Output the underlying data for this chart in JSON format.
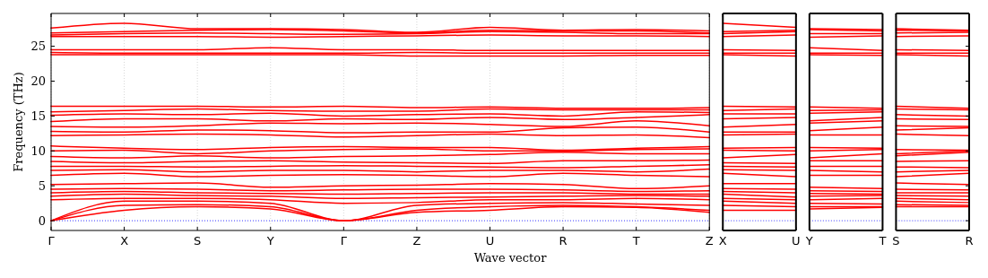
{
  "chart_data": [
    {
      "type": "line",
      "ylabel": "Frequency (THz)",
      "xlabel": "Wave vector",
      "grid": "x",
      "ylim": [
        -1.4,
        29.7
      ],
      "yticks": [
        0,
        5,
        10,
        15,
        20,
        25
      ],
      "categories": [
        "Γ",
        "X",
        "S",
        "Y",
        "Γ",
        "Z",
        "U",
        "R",
        "T",
        "Z"
      ],
      "ref_lines": [
        {
          "axis": "y",
          "value": 0,
          "color": "#0000ff",
          "line_style": "dotted"
        }
      ],
      "series": [
        {
          "color": "#ff0000",
          "values": [
            0,
            1.5,
            2.0,
            1.7,
            0,
            1.2,
            1.5,
            2.0,
            1.9,
            1.2
          ]
        },
        {
          "color": "#ff0000",
          "values": [
            0,
            2.2,
            2.3,
            2.0,
            0,
            1.5,
            2.0,
            2.2,
            2.0,
            1.5
          ]
        },
        {
          "color": "#ff0000",
          "values": [
            0,
            2.8,
            2.8,
            2.5,
            0,
            2.2,
            2.5,
            2.6,
            2.4,
            2.2
          ]
        },
        {
          "color": "#ff0000",
          "values": [
            3.0,
            3.2,
            3.2,
            3.0,
            2.5,
            2.6,
            3.0,
            3.0,
            3.2,
            3.0
          ]
        },
        {
          "color": "#ff0000",
          "values": [
            3.5,
            3.8,
            3.6,
            3.5,
            3.2,
            3.3,
            3.4,
            3.5,
            3.6,
            3.5
          ]
        },
        {
          "color": "#ff0000",
          "values": [
            4.0,
            4.2,
            4.0,
            3.9,
            3.8,
            3.9,
            4.0,
            4.0,
            3.8,
            3.8
          ]
        },
        {
          "color": "#ff0000",
          "values": [
            4.5,
            4.6,
            4.5,
            4.3,
            4.4,
            4.5,
            4.5,
            4.4,
            4.2,
            4.3
          ]
        },
        {
          "color": "#ff0000",
          "values": [
            5.2,
            5.3,
            5.4,
            4.8,
            5.0,
            5.1,
            5.3,
            5.2,
            4.6,
            5.0
          ]
        },
        {
          "color": "#ff0000",
          "values": [
            6.5,
            6.8,
            6.3,
            6.5,
            6.6,
            6.5,
            6.3,
            6.8,
            6.5,
            6.3
          ]
        },
        {
          "color": "#ff0000",
          "values": [
            7.2,
            7.3,
            7.0,
            7.2,
            7.2,
            7.0,
            7.2,
            7.2,
            7.0,
            7.4
          ]
        },
        {
          "color": "#ff0000",
          "values": [
            7.8,
            7.8,
            7.7,
            7.8,
            7.9,
            7.8,
            7.7,
            7.6,
            7.8,
            8.0
          ]
        },
        {
          "color": "#ff0000",
          "values": [
            8.5,
            8.3,
            8.5,
            8.6,
            8.4,
            8.3,
            8.2,
            8.6,
            8.6,
            8.7
          ]
        },
        {
          "color": "#ff0000",
          "values": [
            9.2,
            9.0,
            9.3,
            9.0,
            9.2,
            9.3,
            9.5,
            9.8,
            9.6,
            9.6
          ]
        },
        {
          "color": "#ff0000",
          "values": [
            10.0,
            10.1,
            9.6,
            10.0,
            10.2,
            10.3,
            10.0,
            10.0,
            10.2,
            10.3
          ]
        },
        {
          "color": "#ff0000",
          "values": [
            10.7,
            10.4,
            10.2,
            10.5,
            10.6,
            10.5,
            10.5,
            10.1,
            10.4,
            10.6
          ]
        },
        {
          "color": "#ff0000",
          "values": [
            12.2,
            12.3,
            12.4,
            12.3,
            12.0,
            12.2,
            12.4,
            12.2,
            12.3,
            11.9
          ]
        },
        {
          "color": "#ff0000",
          "values": [
            12.8,
            12.7,
            13.0,
            12.9,
            12.6,
            12.7,
            12.7,
            13.3,
            13.4,
            12.7
          ]
        },
        {
          "color": "#ff0000",
          "values": [
            13.5,
            13.4,
            13.6,
            14.0,
            13.9,
            14.0,
            13.8,
            13.5,
            14.3,
            13.6
          ]
        },
        {
          "color": "#ff0000",
          "values": [
            14.2,
            14.6,
            14.6,
            14.3,
            14.6,
            14.5,
            14.8,
            14.5,
            14.8,
            15.2
          ]
        },
        {
          "color": "#ff0000",
          "values": [
            15.1,
            15.3,
            15.2,
            15.4,
            15.0,
            15.2,
            15.3,
            15.0,
            15.6,
            15.5
          ]
        },
        {
          "color": "#ff0000",
          "values": [
            15.6,
            15.8,
            16.0,
            15.8,
            15.7,
            15.7,
            16.0,
            15.9,
            15.9,
            15.9
          ]
        },
        {
          "color": "#ff0000",
          "values": [
            16.4,
            16.4,
            16.4,
            16.3,
            16.4,
            16.2,
            16.3,
            16.1,
            16.1,
            16.2
          ]
        },
        {
          "color": "#ff0000",
          "values": [
            23.8,
            23.8,
            23.8,
            23.8,
            23.8,
            23.6,
            23.6,
            23.6,
            23.7,
            23.7
          ]
        },
        {
          "color": "#ff0000",
          "values": [
            24.1,
            24.0,
            24.0,
            24.0,
            24.0,
            24.1,
            24.0,
            24.0,
            24.0,
            24.0
          ]
        },
        {
          "color": "#ff0000",
          "values": [
            24.5,
            24.5,
            24.5,
            24.8,
            24.5,
            24.5,
            24.4,
            24.4,
            24.4,
            24.4
          ]
        },
        {
          "color": "#ff0000",
          "values": [
            26.4,
            26.4,
            26.4,
            26.3,
            26.4,
            26.5,
            26.6,
            26.5,
            26.5,
            26.4
          ]
        },
        {
          "color": "#ff0000",
          "values": [
            26.6,
            26.8,
            26.9,
            26.8,
            26.7,
            26.8,
            27.1,
            27.0,
            26.8,
            26.8
          ]
        },
        {
          "color": "#ff0000",
          "values": [
            26.9,
            27.1,
            27.3,
            27.4,
            27.2,
            26.9,
            27.3,
            27.2,
            27.2,
            26.9
          ]
        },
        {
          "color": "#ff0000",
          "values": [
            27.6,
            28.3,
            27.5,
            27.5,
            27.4,
            27.0,
            27.7,
            27.3,
            27.4,
            27.2
          ]
        }
      ]
    },
    {
      "type": "line",
      "tick_labels": "x",
      "ylim": [
        -1.4,
        29.7
      ],
      "categories": [
        "X",
        "U"
      ],
      "ref_lines": [
        {
          "axis": "y",
          "value": 0,
          "color": "#0000ff",
          "line_style": "dotted"
        }
      ],
      "series": [
        {
          "color": "#ff0000",
          "values": [
            1.5,
            1.5
          ]
        },
        {
          "color": "#ff0000",
          "values": [
            2.2,
            2.0
          ]
        },
        {
          "color": "#ff0000",
          "values": [
            2.8,
            2.5
          ]
        },
        {
          "color": "#ff0000",
          "values": [
            3.2,
            3.0
          ]
        },
        {
          "color": "#ff0000",
          "values": [
            3.8,
            3.4
          ]
        },
        {
          "color": "#ff0000",
          "values": [
            4.2,
            4.0
          ]
        },
        {
          "color": "#ff0000",
          "values": [
            4.6,
            4.5
          ]
        },
        {
          "color": "#ff0000",
          "values": [
            5.3,
            5.3
          ]
        },
        {
          "color": "#ff0000",
          "values": [
            6.8,
            6.3
          ]
        },
        {
          "color": "#ff0000",
          "values": [
            7.3,
            7.2
          ]
        },
        {
          "color": "#ff0000",
          "values": [
            7.8,
            7.7
          ]
        },
        {
          "color": "#ff0000",
          "values": [
            8.3,
            8.2
          ]
        },
        {
          "color": "#ff0000",
          "values": [
            9.0,
            9.5
          ]
        },
        {
          "color": "#ff0000",
          "values": [
            10.1,
            10.0
          ]
        },
        {
          "color": "#ff0000",
          "values": [
            10.4,
            10.5
          ]
        },
        {
          "color": "#ff0000",
          "values": [
            12.3,
            12.4
          ]
        },
        {
          "color": "#ff0000",
          "values": [
            12.7,
            12.7
          ]
        },
        {
          "color": "#ff0000",
          "values": [
            13.4,
            13.8
          ]
        },
        {
          "color": "#ff0000",
          "values": [
            14.6,
            14.8
          ]
        },
        {
          "color": "#ff0000",
          "values": [
            15.3,
            15.3
          ]
        },
        {
          "color": "#ff0000",
          "values": [
            15.8,
            16.0
          ]
        },
        {
          "color": "#ff0000",
          "values": [
            16.4,
            16.3
          ]
        },
        {
          "color": "#ff0000",
          "values": [
            23.8,
            23.6
          ]
        },
        {
          "color": "#ff0000",
          "values": [
            24.0,
            24.0
          ]
        },
        {
          "color": "#ff0000",
          "values": [
            24.5,
            24.4
          ]
        },
        {
          "color": "#ff0000",
          "values": [
            26.4,
            26.6
          ]
        },
        {
          "color": "#ff0000",
          "values": [
            26.8,
            27.1
          ]
        },
        {
          "color": "#ff0000",
          "values": [
            27.1,
            27.3
          ]
        },
        {
          "color": "#ff0000",
          "values": [
            28.3,
            27.7
          ]
        }
      ]
    },
    {
      "type": "line",
      "tick_labels": "x",
      "ylim": [
        -1.4,
        29.7
      ],
      "categories": [
        "Y",
        "T"
      ],
      "ref_lines": [
        {
          "axis": "y",
          "value": 0,
          "color": "#0000ff",
          "line_style": "dotted"
        }
      ],
      "series": [
        {
          "color": "#ff0000",
          "values": [
            1.7,
            1.9
          ]
        },
        {
          "color": "#ff0000",
          "values": [
            2.0,
            2.0
          ]
        },
        {
          "color": "#ff0000",
          "values": [
            2.5,
            2.4
          ]
        },
        {
          "color": "#ff0000",
          "values": [
            3.0,
            3.2
          ]
        },
        {
          "color": "#ff0000",
          "values": [
            3.5,
            3.6
          ]
        },
        {
          "color": "#ff0000",
          "values": [
            3.9,
            3.8
          ]
        },
        {
          "color": "#ff0000",
          "values": [
            4.3,
            4.2
          ]
        },
        {
          "color": "#ff0000",
          "values": [
            4.8,
            4.6
          ]
        },
        {
          "color": "#ff0000",
          "values": [
            6.5,
            6.5
          ]
        },
        {
          "color": "#ff0000",
          "values": [
            7.2,
            7.0
          ]
        },
        {
          "color": "#ff0000",
          "values": [
            7.8,
            7.8
          ]
        },
        {
          "color": "#ff0000",
          "values": [
            8.6,
            8.6
          ]
        },
        {
          "color": "#ff0000",
          "values": [
            9.0,
            9.6
          ]
        },
        {
          "color": "#ff0000",
          "values": [
            10.0,
            10.2
          ]
        },
        {
          "color": "#ff0000",
          "values": [
            10.5,
            10.4
          ]
        },
        {
          "color": "#ff0000",
          "values": [
            12.3,
            12.3
          ]
        },
        {
          "color": "#ff0000",
          "values": [
            12.9,
            13.4
          ]
        },
        {
          "color": "#ff0000",
          "values": [
            14.0,
            14.3
          ]
        },
        {
          "color": "#ff0000",
          "values": [
            14.3,
            14.8
          ]
        },
        {
          "color": "#ff0000",
          "values": [
            15.4,
            15.6
          ]
        },
        {
          "color": "#ff0000",
          "values": [
            15.8,
            15.9
          ]
        },
        {
          "color": "#ff0000",
          "values": [
            16.3,
            16.1
          ]
        },
        {
          "color": "#ff0000",
          "values": [
            23.8,
            23.7
          ]
        },
        {
          "color": "#ff0000",
          "values": [
            24.0,
            24.0
          ]
        },
        {
          "color": "#ff0000",
          "values": [
            24.8,
            24.4
          ]
        },
        {
          "color": "#ff0000",
          "values": [
            26.3,
            26.5
          ]
        },
        {
          "color": "#ff0000",
          "values": [
            26.8,
            26.8
          ]
        },
        {
          "color": "#ff0000",
          "values": [
            27.4,
            27.2
          ]
        },
        {
          "color": "#ff0000",
          "values": [
            27.5,
            27.4
          ]
        }
      ]
    },
    {
      "type": "line",
      "tick_labels": "x",
      "ylim": [
        -1.4,
        29.7
      ],
      "yticks": [
        0,
        5,
        10,
        15,
        20,
        25
      ],
      "categories": [
        "S",
        "R"
      ],
      "ref_lines": [
        {
          "axis": "y",
          "value": 0,
          "color": "#0000ff",
          "line_style": "dotted"
        }
      ],
      "series": [
        {
          "color": "#ff0000",
          "values": [
            2.0,
            2.0
          ]
        },
        {
          "color": "#ff0000",
          "values": [
            2.3,
            2.2
          ]
        },
        {
          "color": "#ff0000",
          "values": [
            2.8,
            2.6
          ]
        },
        {
          "color": "#ff0000",
          "values": [
            3.2,
            3.0
          ]
        },
        {
          "color": "#ff0000",
          "values": [
            3.6,
            3.5
          ]
        },
        {
          "color": "#ff0000",
          "values": [
            4.0,
            4.0
          ]
        },
        {
          "color": "#ff0000",
          "values": [
            4.5,
            4.4
          ]
        },
        {
          "color": "#ff0000",
          "values": [
            5.4,
            5.2
          ]
        },
        {
          "color": "#ff0000",
          "values": [
            6.3,
            6.8
          ]
        },
        {
          "color": "#ff0000",
          "values": [
            7.0,
            7.2
          ]
        },
        {
          "color": "#ff0000",
          "values": [
            7.7,
            7.6
          ]
        },
        {
          "color": "#ff0000",
          "values": [
            8.5,
            8.6
          ]
        },
        {
          "color": "#ff0000",
          "values": [
            9.3,
            9.8
          ]
        },
        {
          "color": "#ff0000",
          "values": [
            9.6,
            10.0
          ]
        },
        {
          "color": "#ff0000",
          "values": [
            10.2,
            10.1
          ]
        },
        {
          "color": "#ff0000",
          "values": [
            12.4,
            12.2
          ]
        },
        {
          "color": "#ff0000",
          "values": [
            13.0,
            13.3
          ]
        },
        {
          "color": "#ff0000",
          "values": [
            13.6,
            13.5
          ]
        },
        {
          "color": "#ff0000",
          "values": [
            14.6,
            14.5
          ]
        },
        {
          "color": "#ff0000",
          "values": [
            15.2,
            15.0
          ]
        },
        {
          "color": "#ff0000",
          "values": [
            16.0,
            15.9
          ]
        },
        {
          "color": "#ff0000",
          "values": [
            16.4,
            16.1
          ]
        },
        {
          "color": "#ff0000",
          "values": [
            23.8,
            23.6
          ]
        },
        {
          "color": "#ff0000",
          "values": [
            24.0,
            24.0
          ]
        },
        {
          "color": "#ff0000",
          "values": [
            24.5,
            24.4
          ]
        },
        {
          "color": "#ff0000",
          "values": [
            26.4,
            26.5
          ]
        },
        {
          "color": "#ff0000",
          "values": [
            26.9,
            27.0
          ]
        },
        {
          "color": "#ff0000",
          "values": [
            27.3,
            27.2
          ]
        },
        {
          "color": "#ff0000",
          "values": [
            27.5,
            27.3
          ]
        }
      ]
    }
  ]
}
